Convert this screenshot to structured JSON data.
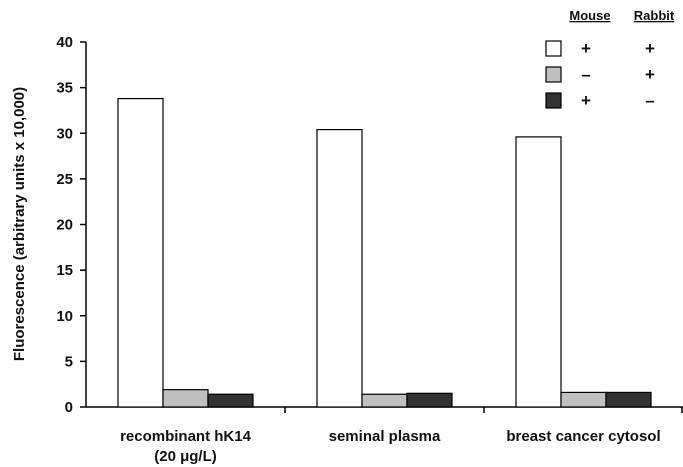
{
  "chart_data": {
    "type": "bar",
    "title": "",
    "xlabel": "",
    "ylabel": "Fluorescence (arbitrary units x 10,000)",
    "ylim": [
      0,
      40
    ],
    "yticks": [
      "0",
      "5",
      "10",
      "15",
      "20",
      "25",
      "30",
      "35",
      "40"
    ],
    "categories": [
      [
        "recombinant hK14",
        "(20 μg/L)"
      ],
      [
        "seminal plasma"
      ],
      [
        "breast cancer cytosol"
      ]
    ],
    "series": [
      {
        "color": "#ffffff",
        "values": [
          33.8,
          30.4,
          29.6
        ]
      },
      {
        "color": "#c0c0c0",
        "values": [
          1.9,
          1.4,
          1.6
        ]
      },
      {
        "color": "#333333",
        "values": [
          1.4,
          1.5,
          1.6
        ]
      }
    ],
    "grid": false,
    "legend_placement": "top-right",
    "legend": {
      "headers": [
        "Mouse",
        "Rabbit"
      ],
      "rows": [
        [
          "+",
          "+"
        ],
        [
          "–",
          "+"
        ],
        [
          "+",
          "–"
        ]
      ]
    }
  }
}
